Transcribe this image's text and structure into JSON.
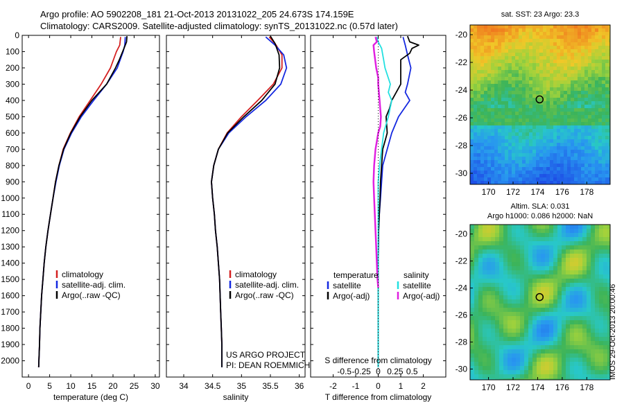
{
  "header": {
    "line1": "Argo profile: AO 5902208_181 21-Oct-2013 20131022_205 24.673S 174.159E",
    "line2": "Climatology: CARS2009. Satellite-adjusted climatology: synTS_20131022.nc (0.57d later)"
  },
  "colors": {
    "clim": "#d42020",
    "sat": "#1428e0",
    "argo": "#000000",
    "sal_sat": "#22e0e0",
    "sal_argo": "#e020e0"
  },
  "chart_data": [
    {
      "type": "line",
      "id": "temperature",
      "xlabel": "temperature (deg C)",
      "ylabel": "",
      "xlim": [
        -1.5,
        31
      ],
      "ylim": [
        2100,
        0
      ],
      "xticks": [
        0,
        5,
        10,
        15,
        20,
        25,
        30
      ],
      "yticks": [
        0,
        100,
        200,
        300,
        400,
        500,
        600,
        700,
        800,
        900,
        1000,
        1100,
        1200,
        1300,
        1400,
        1500,
        1600,
        1700,
        1800,
        1900,
        2000
      ],
      "legend": [
        "climatology",
        "satellite-adj. clim.",
        "Argo(..raw -QC)"
      ],
      "legend_position": "lower-left",
      "series": [
        {
          "name": "climatology",
          "color": "clim",
          "points": [
            [
              21.8,
              10
            ],
            [
              21.6,
              60
            ],
            [
              20.8,
              100
            ],
            [
              19.4,
              200
            ],
            [
              17.2,
              300
            ],
            [
              14.6,
              400
            ],
            [
              12.0,
              500
            ],
            [
              9.9,
              600
            ],
            [
              8.2,
              700
            ],
            [
              7.2,
              800
            ],
            [
              6.4,
              900
            ],
            [
              5.8,
              1000
            ],
            [
              5.2,
              1100
            ],
            [
              4.6,
              1200
            ],
            [
              4.1,
              1300
            ],
            [
              3.7,
              1400
            ],
            [
              3.4,
              1500
            ],
            [
              3.1,
              1600
            ],
            [
              2.9,
              1700
            ],
            [
              2.7,
              1800
            ],
            [
              2.6,
              1900
            ],
            [
              2.45,
              2000
            ],
            [
              2.4,
              2040
            ]
          ]
        },
        {
          "name": "satellite-adj. clim.",
          "color": "sat",
          "points": [
            [
              22.9,
              10
            ],
            [
              22.8,
              60
            ],
            [
              22.4,
              100
            ],
            [
              21.0,
              200
            ],
            [
              18.5,
              300
            ],
            [
              15.4,
              400
            ],
            [
              12.5,
              500
            ],
            [
              10.2,
              600
            ],
            [
              8.4,
              700
            ],
            [
              7.3,
              800
            ],
            [
              6.5,
              900
            ],
            [
              5.8,
              1000
            ],
            [
              5.2,
              1100
            ],
            [
              4.6,
              1200
            ],
            [
              4.1,
              1300
            ],
            [
              3.7,
              1400
            ],
            [
              3.4,
              1500
            ],
            [
              3.1,
              1600
            ],
            [
              2.9,
              1700
            ],
            [
              2.7,
              1800
            ],
            [
              2.6,
              1900
            ],
            [
              2.45,
              2000
            ],
            [
              2.4,
              2040
            ]
          ]
        },
        {
          "name": "Argo(..raw -QC)",
          "color": "argo",
          "points": [
            [
              23.3,
              5
            ],
            [
              23.2,
              40
            ],
            [
              22.6,
              80
            ],
            [
              21.5,
              150
            ],
            [
              20.6,
              200
            ],
            [
              18.5,
              300
            ],
            [
              15.0,
              400
            ],
            [
              12.2,
              500
            ],
            [
              10.0,
              600
            ],
            [
              8.3,
              700
            ],
            [
              7.2,
              800
            ],
            [
              6.4,
              900
            ],
            [
              5.8,
              1000
            ],
            [
              5.2,
              1100
            ],
            [
              4.6,
              1200
            ],
            [
              4.1,
              1300
            ],
            [
              3.7,
              1400
            ],
            [
              3.4,
              1500
            ],
            [
              3.1,
              1600
            ],
            [
              2.9,
              1700
            ],
            [
              2.7,
              1800
            ],
            [
              2.6,
              1900
            ],
            [
              2.45,
              2000
            ],
            [
              2.4,
              2040
            ]
          ]
        }
      ]
    },
    {
      "type": "line",
      "id": "salinity",
      "xlabel": "salinity",
      "ylabel": "",
      "xlim": [
        33.7,
        36.1
      ],
      "ylim": [
        2100,
        0
      ],
      "xticks": [
        34,
        34.5,
        35,
        35.5,
        36
      ],
      "legend": [
        "climatology",
        "satellite-adj. clim.",
        "Argo(..raw -QC)"
      ],
      "legend_position": "lower-right",
      "annotation": [
        "US ARGO PROJECT",
        "PI: DEAN ROEMMICH"
      ],
      "series": [
        {
          "name": "climatology",
          "color": "clim",
          "points": [
            [
              35.48,
              10
            ],
            [
              35.6,
              60
            ],
            [
              35.7,
              120
            ],
            [
              35.7,
              200
            ],
            [
              35.55,
              300
            ],
            [
              35.28,
              400
            ],
            [
              35.0,
              500
            ],
            [
              34.75,
              600
            ],
            [
              34.6,
              700
            ],
            [
              34.52,
              800
            ],
            [
              34.48,
              900
            ],
            [
              34.5,
              1000
            ],
            [
              34.53,
              1100
            ],
            [
              34.55,
              1200
            ],
            [
              34.58,
              1300
            ],
            [
              34.6,
              1400
            ],
            [
              34.62,
              1500
            ],
            [
              34.63,
              1600
            ],
            [
              34.64,
              1700
            ],
            [
              34.65,
              1800
            ],
            [
              34.66,
              1900
            ],
            [
              34.66,
              2000
            ],
            [
              34.66,
              2040
            ]
          ]
        },
        {
          "name": "satellite-adj. clim.",
          "color": "sat",
          "points": [
            [
              35.42,
              10
            ],
            [
              35.58,
              60
            ],
            [
              35.73,
              120
            ],
            [
              35.78,
              200
            ],
            [
              35.68,
              300
            ],
            [
              35.42,
              400
            ],
            [
              35.08,
              500
            ],
            [
              34.78,
              600
            ],
            [
              34.6,
              700
            ],
            [
              34.52,
              800
            ],
            [
              34.48,
              900
            ],
            [
              34.5,
              1000
            ],
            [
              34.53,
              1100
            ],
            [
              34.55,
              1200
            ],
            [
              34.58,
              1300
            ],
            [
              34.6,
              1400
            ],
            [
              34.62,
              1500
            ],
            [
              34.63,
              1600
            ],
            [
              34.64,
              1700
            ],
            [
              34.65,
              1800
            ],
            [
              34.66,
              1900
            ],
            [
              34.66,
              2000
            ],
            [
              34.66,
              2040
            ]
          ]
        },
        {
          "name": "Argo(..raw -QC)",
          "color": "argo",
          "points": [
            [
              35.5,
              5
            ],
            [
              35.58,
              50
            ],
            [
              35.65,
              120
            ],
            [
              35.66,
              200
            ],
            [
              35.58,
              300
            ],
            [
              35.35,
              400
            ],
            [
              35.04,
              500
            ],
            [
              34.76,
              600
            ],
            [
              34.6,
              700
            ],
            [
              34.52,
              800
            ],
            [
              34.48,
              900
            ],
            [
              34.5,
              1000
            ],
            [
              34.53,
              1100
            ],
            [
              34.55,
              1200
            ],
            [
              34.58,
              1300
            ],
            [
              34.6,
              1400
            ],
            [
              34.62,
              1500
            ],
            [
              34.63,
              1600
            ],
            [
              34.64,
              1700
            ],
            [
              34.65,
              1800
            ],
            [
              34.66,
              1900
            ],
            [
              34.66,
              2000
            ],
            [
              34.66,
              2040
            ]
          ]
        }
      ]
    },
    {
      "type": "line",
      "id": "difference",
      "xlabel": "T difference from climatology",
      "xlabel_top": "S difference from climatology",
      "xlim": [
        -3.0,
        3.0
      ],
      "ylim": [
        2100,
        0
      ],
      "xticks": [
        -2,
        -1,
        0,
        1,
        2
      ],
      "sticks": [
        -0.5,
        -0.25,
        0,
        0.25,
        0.5
      ],
      "s_scale": 3,
      "legend_titles": [
        "temperature",
        "salinity"
      ],
      "legend_left": [
        "satellite",
        "Argo(-adj)"
      ],
      "legend_right": [
        "satellite",
        "Argo(-adj)"
      ],
      "legend_position": "lower-center",
      "series": [
        {
          "name": "T satellite",
          "color": "sat",
          "points": [
            [
              1.1,
              10
            ],
            [
              1.2,
              60
            ],
            [
              1.3,
              120
            ],
            [
              1.45,
              200
            ],
            [
              1.3,
              300
            ],
            [
              1.2,
              350
            ],
            [
              1.4,
              400
            ],
            [
              0.9,
              500
            ],
            [
              0.6,
              600
            ],
            [
              0.4,
              700
            ],
            [
              0.2,
              800
            ],
            [
              0.15,
              900
            ],
            [
              0.1,
              1000
            ],
            [
              0.05,
              1100
            ],
            [
              0.02,
              1200
            ],
            [
              0.01,
              1300
            ],
            [
              0,
              1400
            ],
            [
              0,
              1600
            ],
            [
              0,
              2040
            ]
          ]
        },
        {
          "name": "T Argo(-adj)",
          "color": "argo",
          "points": [
            [
              1.3,
              5
            ],
            [
              1.4,
              40
            ],
            [
              1.8,
              60
            ],
            [
              1.5,
              80
            ],
            [
              1.4,
              110
            ],
            [
              1.0,
              150
            ],
            [
              1.0,
              200
            ],
            [
              1.0,
              300
            ],
            [
              0.8,
              350
            ],
            [
              0.6,
              400
            ],
            [
              0.5,
              450
            ],
            [
              0.35,
              500
            ],
            [
              0.4,
              600
            ],
            [
              0.3,
              650
            ],
            [
              0.2,
              700
            ],
            [
              0.15,
              800
            ],
            [
              0.1,
              900
            ],
            [
              0.08,
              1000
            ],
            [
              0.05,
              1100
            ],
            [
              0.02,
              1200
            ],
            [
              0.01,
              1300
            ],
            [
              0,
              1400
            ],
            [
              0,
              2040
            ]
          ]
        },
        {
          "name": "S satellite",
          "color": "sal_sat",
          "points": [
            [
              -0.02,
              10
            ],
            [
              0,
              40
            ],
            [
              0.05,
              80
            ],
            [
              0.08,
              150
            ],
            [
              0.1,
              200
            ],
            [
              0.18,
              300
            ],
            [
              0.15,
              350
            ],
            [
              0.2,
              400
            ],
            [
              0.15,
              500
            ],
            [
              0.08,
              600
            ],
            [
              0.05,
              700
            ],
            [
              0.02,
              800
            ],
            [
              0,
              900
            ],
            [
              0,
              1000
            ],
            [
              0,
              2040
            ]
          ]
        },
        {
          "name": "S Argo(-adj)",
          "color": "sal_argo",
          "points": [
            [
              -0.04,
              10
            ],
            [
              -0.02,
              40
            ],
            [
              -0.07,
              60
            ],
            [
              -0.06,
              100
            ],
            [
              -0.03,
              200
            ],
            [
              0,
              260
            ],
            [
              0,
              300
            ],
            [
              0.02,
              400
            ],
            [
              0.03,
              450
            ],
            [
              0.04,
              500
            ],
            [
              0.03,
              560
            ],
            [
              0,
              600
            ],
            [
              -0.04,
              700
            ],
            [
              -0.06,
              800
            ],
            [
              -0.07,
              900
            ],
            [
              -0.06,
              1000
            ],
            [
              -0.05,
              1100
            ],
            [
              -0.04,
              1200
            ],
            [
              -0.03,
              1300
            ],
            [
              -0.02,
              1400
            ],
            [
              -0.01,
              1500
            ],
            [
              0,
              1550
            ]
          ]
        }
      ]
    }
  ],
  "maps": [
    {
      "id": "sst-map",
      "title": "sat. SST: 23 Argo: 23.3",
      "lon_ticks": [
        170,
        172,
        174,
        176,
        178
      ],
      "lat_ticks": [
        -20,
        -22,
        -24,
        -26,
        -28,
        -30
      ],
      "lon_range": [
        168.5,
        179.9
      ],
      "lat_range": [
        -30.8,
        -19.3
      ],
      "marker": [
        174.16,
        -24.67
      ]
    },
    {
      "id": "sla-map",
      "title_line1": "Altim. SLA: 0.031",
      "title_line2": "Argo h1000: 0.086 h2000: NaN",
      "lon_ticks": [
        170,
        172,
        174,
        176,
        178
      ],
      "lat_ticks": [
        -20,
        -22,
        -24,
        -26,
        -28,
        -30
      ],
      "lon_range": [
        168.5,
        179.9
      ],
      "lat_range": [
        -30.8,
        -19.3
      ],
      "marker": [
        174.16,
        -24.67
      ]
    }
  ],
  "stamp": "IMOS 29-Oct-2013 20:00:46"
}
